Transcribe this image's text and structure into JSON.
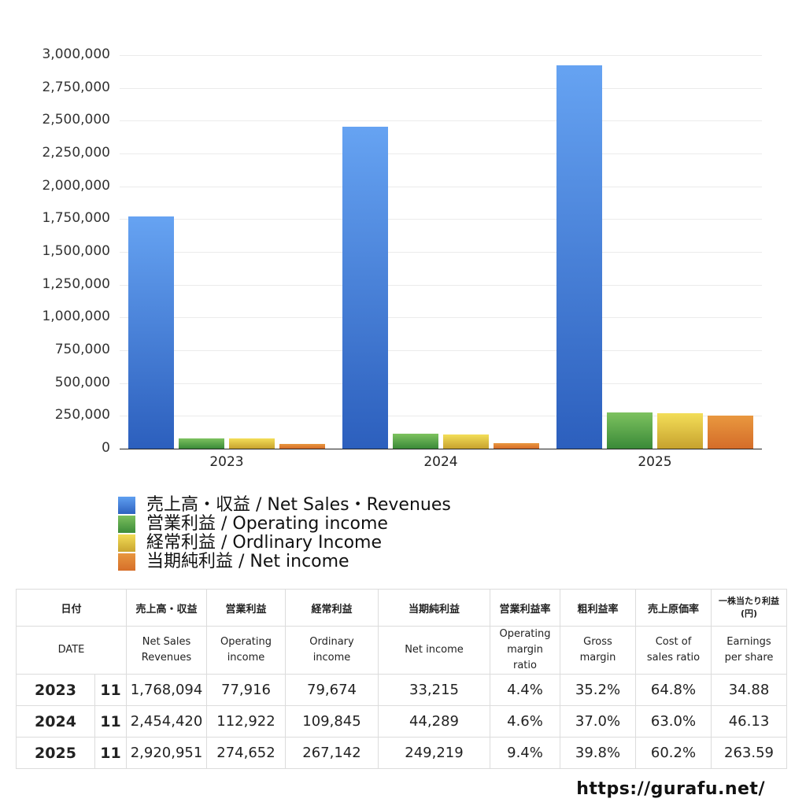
{
  "chart_data": {
    "type": "bar",
    "title": "",
    "xlabel": "",
    "ylabel": "",
    "categories": [
      "2023",
      "2024",
      "2025"
    ],
    "series": [
      {
        "name": "売上高・収益 / Net Sales・Revenues",
        "color": "#3f7fd9",
        "values": [
          1768094,
          2454420,
          2920951
        ]
      },
      {
        "name": "営業利益 / Operating income",
        "color": "#52a048",
        "values": [
          77916,
          112922,
          274652
        ]
      },
      {
        "name": "経常利益 / Ordlinary Income",
        "color": "#e6c83c",
        "values": [
          79674,
          109845,
          267142
        ]
      },
      {
        "name": "当期純利益 / Net income",
        "color": "#e07e34",
        "values": [
          33215,
          44289,
          249219
        ]
      }
    ],
    "ylim": [
      0,
      3000000
    ],
    "yticks": [
      "0",
      "250,000",
      "500,000",
      "750,000",
      "1,000,000",
      "1,250,000",
      "1,500,000",
      "1,750,000",
      "2,000,000",
      "2,250,000",
      "2,500,000",
      "2,750,000",
      "3,000,000"
    ],
    "grid": true,
    "legend_position": "bottom-left"
  },
  "legend": [
    {
      "label": "売上高・収益 / Net Sales・Revenues"
    },
    {
      "label": "営業利益 / Operating income"
    },
    {
      "label": "経常利益 / Ordlinary Income"
    },
    {
      "label": "当期純利益 / Net income"
    }
  ],
  "table": {
    "header_jp": [
      "日付",
      "売上高・収益",
      "営業利益",
      "経常利益",
      "当期純利益",
      "営業利益率",
      "粗利益率",
      "売上原価率",
      "一株当たり利益 (円)"
    ],
    "header_en": [
      "DATE",
      "Net Sales Revenues",
      "Operating income",
      "Ordinary income",
      "Net income",
      "Operating margin ratio",
      "Gross margin",
      "Cost of sales ratio",
      "Earnings per share"
    ],
    "rows": [
      {
        "year": "2023",
        "month": "11",
        "sales": "1,768,094",
        "op": "77,916",
        "ord": "79,674",
        "net": "33,215",
        "opm": "4.4%",
        "gm": "35.2%",
        "cos": "64.8%",
        "eps": "34.88"
      },
      {
        "year": "2024",
        "month": "11",
        "sales": "2,454,420",
        "op": "112,922",
        "ord": "109,845",
        "net": "44,289",
        "opm": "4.6%",
        "gm": "37.0%",
        "cos": "63.0%",
        "eps": "46.13"
      },
      {
        "year": "2025",
        "month": "11",
        "sales": "2,920,951",
        "op": "274,652",
        "ord": "267,142",
        "net": "249,219",
        "opm": "9.4%",
        "gm": "39.8%",
        "cos": "60.2%",
        "eps": "263.59"
      }
    ]
  },
  "footer": {
    "url": "https://gurafu.net/"
  }
}
